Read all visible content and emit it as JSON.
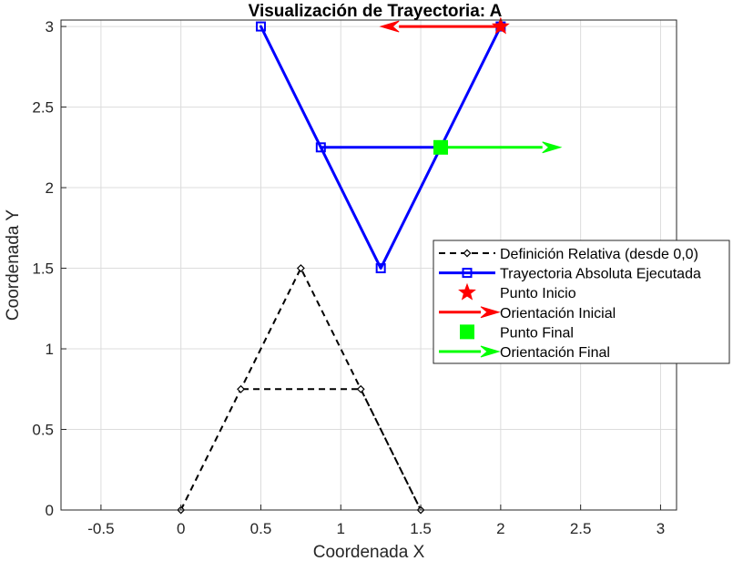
{
  "chart_data": {
    "type": "line",
    "title": "Visualización de Trayectoria: A",
    "xlabel": "Coordenada X",
    "ylabel": "Coordenada Y",
    "xlim": [
      -0.75,
      3.1
    ],
    "ylim": [
      0,
      3.04
    ],
    "xticks": [
      -0.5,
      0,
      0.5,
      1,
      1.5,
      2,
      2.5,
      3
    ],
    "xtick_labels": [
      "-0.5",
      "0",
      "0.5",
      "1",
      "1.5",
      "2",
      "2.5",
      "3"
    ],
    "yticks": [
      0,
      0.5,
      1,
      1.5,
      2,
      2.5,
      3
    ],
    "ytick_labels": [
      "0",
      "0.5",
      "1",
      "1.5",
      "2",
      "2.5",
      "3"
    ],
    "grid": true,
    "legend_position": "right",
    "series": [
      {
        "name": "Definición Relativa (desde 0,0)",
        "style": "dashed",
        "marker": "diamond",
        "color": "#000000",
        "x": [
          0,
          0.75,
          1.5,
          1.125,
          0.375
        ],
        "y": [
          0,
          1.5,
          0,
          0.75,
          0.75
        ]
      },
      {
        "name": "Trayectoria Absoluta Ejecutada",
        "style": "solid",
        "marker": "square",
        "color": "#0000ff",
        "x": [
          2,
          1.25,
          0.5,
          0.875,
          1.625
        ],
        "y": [
          3,
          1.5,
          3,
          2.25,
          2.25
        ]
      },
      {
        "name": "Punto Inicio",
        "style": "none",
        "marker": "star",
        "color": "#ff0000",
        "x": [
          2
        ],
        "y": [
          3
        ]
      },
      {
        "name": "Orientación Inicial",
        "style": "arrow",
        "color": "#ff0000",
        "x": [
          2,
          1.25
        ],
        "y": [
          3,
          3
        ]
      },
      {
        "name": "Punto Final",
        "style": "none",
        "marker": "filled-square",
        "color": "#00ff00",
        "x": [
          1.625
        ],
        "y": [
          2.25
        ]
      },
      {
        "name": "Orientación Final",
        "style": "arrow",
        "color": "#00ff00",
        "x": [
          1.625,
          2.375
        ],
        "y": [
          2.25,
          2.25
        ]
      }
    ]
  }
}
